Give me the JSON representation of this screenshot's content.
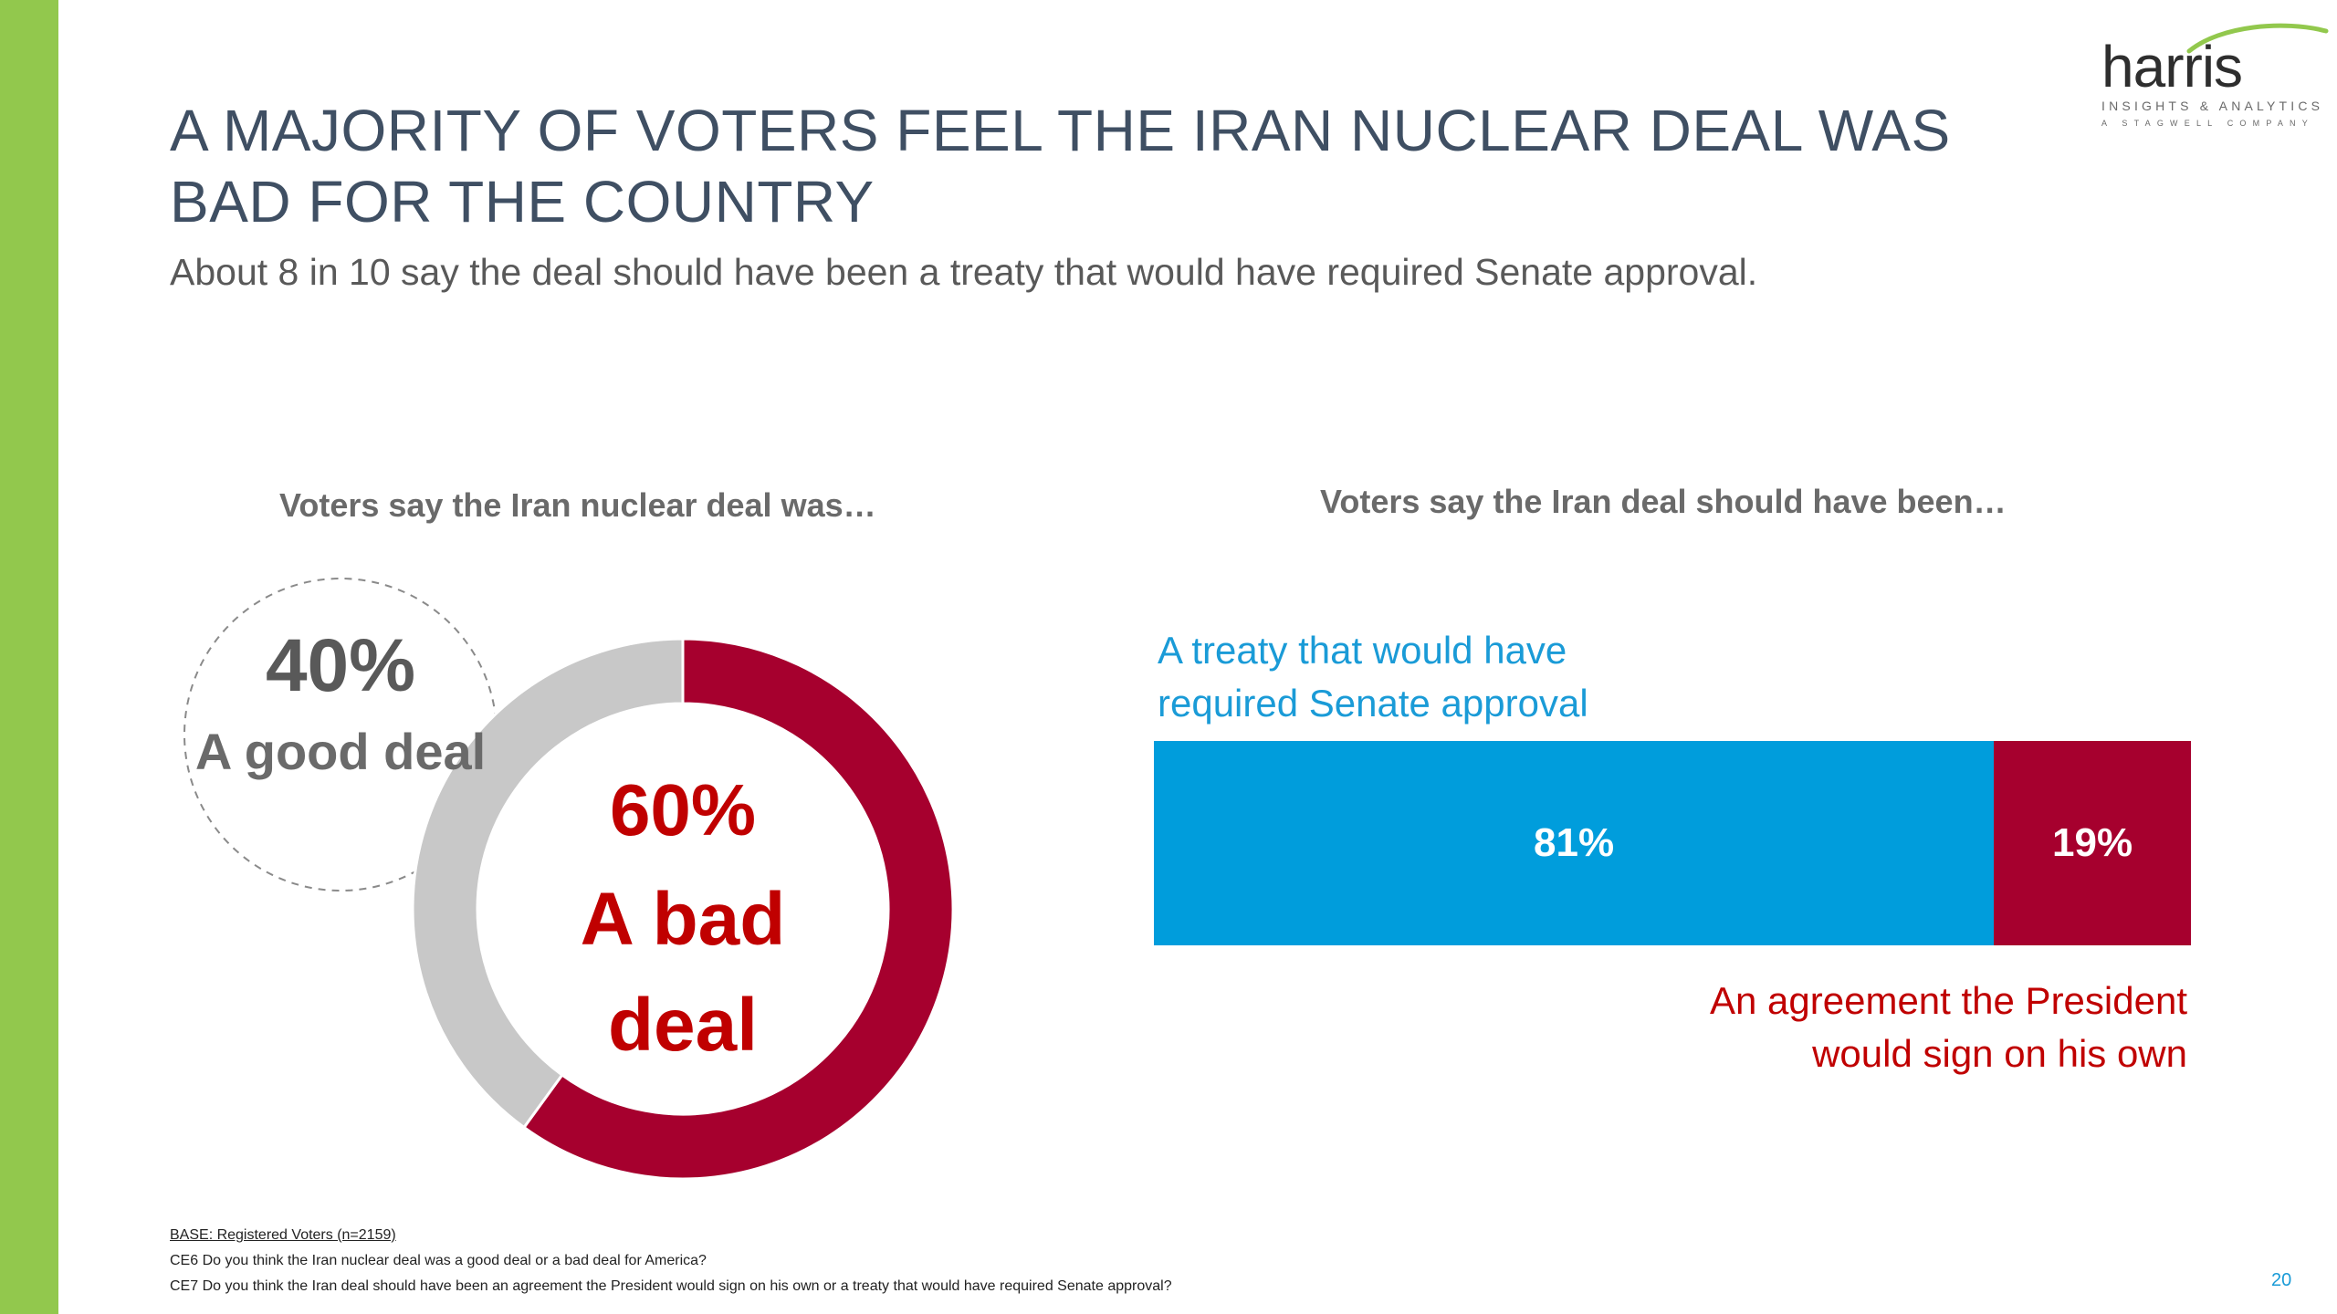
{
  "slide": {
    "title": "A MAJORITY OF VOTERS FEEL THE IRAN NUCLEAR DEAL WAS BAD FOR THE COUNTRY",
    "subtitle": "About 8 in 10 say the deal should have been a treaty that would have required Senate approval.",
    "page_number": "20",
    "accent_color": "#92c84d"
  },
  "logo": {
    "name": "harris",
    "tagline": "INSIGHTS & ANALYTICS",
    "subline": "A STAGWELL COMPANY"
  },
  "footnotes": {
    "base": "BASE: Registered Voters (n=2159)",
    "ce6": "CE6 Do you think the Iran nuclear deal was a good deal or a bad deal for America?",
    "ce7": "CE7 Do you think the Iran deal should have been an agreement the President would sign on his own or a treaty that would have required Senate approval?"
  },
  "chart_data": [
    {
      "type": "pie",
      "title": "Voters say the Iran nuclear deal was…",
      "slices": [
        {
          "label": "A bad deal",
          "value": 60,
          "display": "60%",
          "color": "#a6002e"
        },
        {
          "label": "A good deal",
          "value": 40,
          "display": "40%",
          "color": "#c8c8c8"
        }
      ]
    },
    {
      "type": "bar",
      "orientation": "horizontal-stacked",
      "title": "Voters say the Iran deal should have been…",
      "series": [
        {
          "name": "A treaty that would have required Senate approval",
          "value": 81,
          "display": "81%",
          "color": "#009ddc"
        },
        {
          "name": "An agreement the President would sign on his own",
          "value": 19,
          "display": "19%",
          "color": "#a6002e"
        }
      ],
      "xlim": [
        0,
        100
      ]
    }
  ]
}
